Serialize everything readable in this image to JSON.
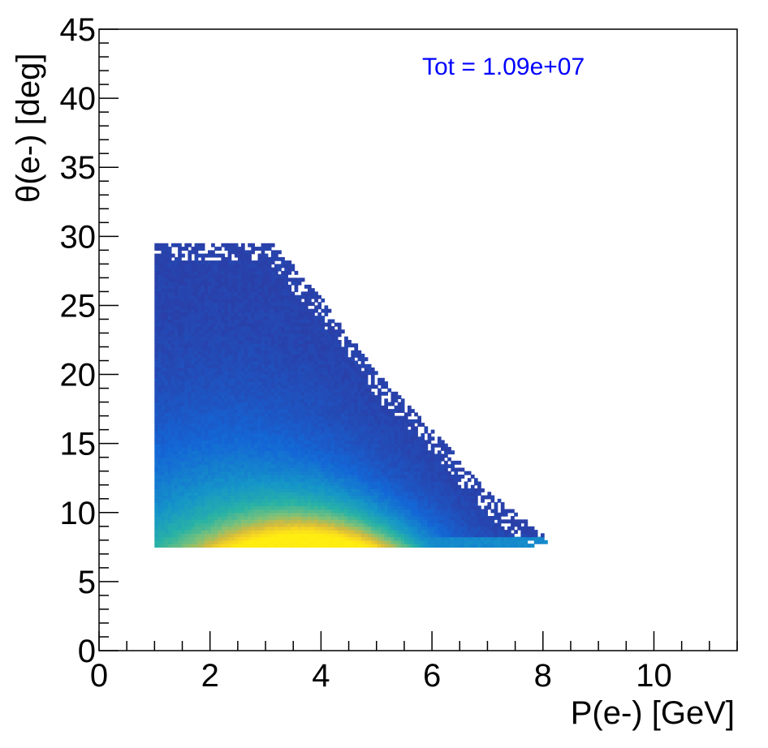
{
  "chart_data": {
    "type": "heatmap",
    "title": "",
    "xlabel": "P(e-) [GeV]",
    "ylabel": "θ(e-) [deg]",
    "xlim": [
      0,
      11.5
    ],
    "ylim": [
      0,
      45
    ],
    "x_ticks": [
      "0",
      "2",
      "4",
      "6",
      "8",
      "10"
    ],
    "y_ticks": [
      "0",
      "5",
      "10",
      "15",
      "20",
      "25",
      "30",
      "35",
      "40",
      "45"
    ],
    "annotation": "Tot = 1.09e+07",
    "annotation_color": "#0000ff",
    "colormap": [
      "#2a3fa8",
      "#1466d6",
      "#1596c8",
      "#2ab3a4",
      "#7cc17a",
      "#d2bb3f",
      "#f8d820",
      "#ffee10"
    ],
    "region": {
      "p_min": 1.0,
      "theta_min": 7.5,
      "theta_max": 29.5,
      "upper_edge": [
        [
          1.0,
          29.5
        ],
        [
          3.0,
          29.5
        ],
        [
          4.0,
          25.0
        ],
        [
          5.0,
          19.5
        ],
        [
          6.0,
          15.5
        ],
        [
          7.0,
          11.0
        ],
        [
          8.1,
          7.5
        ]
      ]
    },
    "peak": {
      "p": 3.8,
      "theta": 7.8
    }
  }
}
